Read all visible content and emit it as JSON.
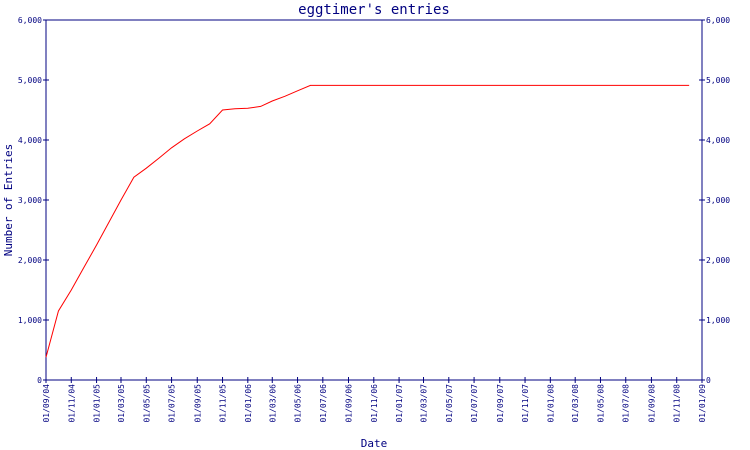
{
  "chart_data": {
    "type": "line",
    "title": "eggtimer's entries",
    "x_label": "Date",
    "y_label": "Number of Entries",
    "x": [
      "2004-09-01",
      "2004-10-01",
      "2004-11-01",
      "2004-12-01",
      "2005-01-01",
      "2005-03-01",
      "2005-04-01",
      "2005-05-01",
      "2005-06-01",
      "2005-07-01",
      "2005-08-01",
      "2005-09-01",
      "2005-10-01",
      "2005-11-01",
      "2005-12-01",
      "2006-01-01",
      "2006-02-01",
      "2006-03-01",
      "2006-04-01",
      "2006-05-01",
      "2006-06-01",
      "2008-12-01"
    ],
    "series": [
      {
        "name": "entries",
        "color": "#ff0000",
        "values": [
          380,
          1150,
          1500,
          1870,
          2250,
          3000,
          3380,
          3530,
          3700,
          3870,
          4020,
          4150,
          4270,
          4500,
          4520,
          4530,
          4560,
          4650,
          4730,
          4820,
          4910,
          4910
        ]
      }
    ],
    "xlim": [
      "2004-09-01",
      "2009-01-01"
    ],
    "xticks": [
      {
        "value": "2004-09-01",
        "label": "01/09/04"
      },
      {
        "value": "2004-11-01",
        "label": "01/11/04"
      },
      {
        "value": "2005-01-01",
        "label": "01/01/05"
      },
      {
        "value": "2005-03-01",
        "label": "01/03/05"
      },
      {
        "value": "2005-05-01",
        "label": "01/05/05"
      },
      {
        "value": "2005-07-01",
        "label": "01/07/05"
      },
      {
        "value": "2005-09-01",
        "label": "01/09/05"
      },
      {
        "value": "2005-11-01",
        "label": "01/11/05"
      },
      {
        "value": "2006-01-01",
        "label": "01/01/06"
      },
      {
        "value": "2006-03-01",
        "label": "01/03/06"
      },
      {
        "value": "2006-05-01",
        "label": "01/05/06"
      },
      {
        "value": "2006-07-01",
        "label": "01/07/06"
      },
      {
        "value": "2006-09-01",
        "label": "01/09/06"
      },
      {
        "value": "2006-11-01",
        "label": "01/11/06"
      },
      {
        "value": "2007-01-01",
        "label": "01/01/07"
      },
      {
        "value": "2007-03-01",
        "label": "01/03/07"
      },
      {
        "value": "2007-05-01",
        "label": "01/05/07"
      },
      {
        "value": "2007-07-01",
        "label": "01/07/07"
      },
      {
        "value": "2007-09-01",
        "label": "01/09/07"
      },
      {
        "value": "2007-11-01",
        "label": "01/11/07"
      },
      {
        "value": "2008-01-01",
        "label": "01/01/08"
      },
      {
        "value": "2008-03-01",
        "label": "01/03/08"
      },
      {
        "value": "2008-05-01",
        "label": "01/05/08"
      },
      {
        "value": "2008-07-01",
        "label": "01/07/08"
      },
      {
        "value": "2008-09-01",
        "label": "01/09/08"
      },
      {
        "value": "2008-11-01",
        "label": "01/11/08"
      },
      {
        "value": "2009-01-01",
        "label": "01/01/09"
      }
    ],
    "ylim": [
      0,
      6000
    ],
    "yticks": [
      0,
      {
        "value": 1000,
        "label": "1,000"
      },
      {
        "value": 2000,
        "label": "2,000"
      },
      {
        "value": 3000,
        "label": "3,000"
      },
      {
        "value": 4000,
        "label": "4,000"
      },
      {
        "value": 5000,
        "label": "5,000"
      },
      {
        "value": 6000,
        "label": "6,000"
      }
    ],
    "axis_color": "#000080"
  }
}
